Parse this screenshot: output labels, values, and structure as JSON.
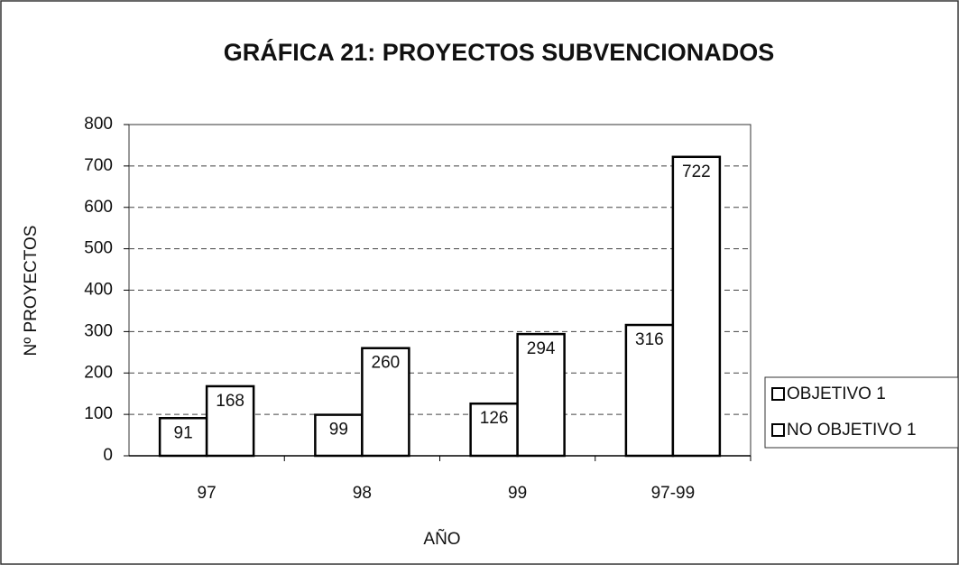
{
  "chart_data": {
    "type": "bar",
    "title": "GRÁFICA 21: PROYECTOS SUBVENCIONADOS",
    "x_label": "AÑO",
    "y_label": "Nº PROYECTOS",
    "categories": [
      "97",
      "98",
      "99",
      "97-99"
    ],
    "series": [
      {
        "name": "OBJETIVO 1",
        "color": "#ffffff",
        "values": [
          91,
          99,
          126,
          316
        ]
      },
      {
        "name": "NO OBJETIVO 1",
        "color": "#ffffff",
        "values": [
          168,
          260,
          294,
          722
        ]
      }
    ],
    "ylim": [
      0,
      800
    ],
    "yticks": [
      0,
      100,
      200,
      300,
      400,
      500,
      600,
      700,
      800
    ],
    "grid": true,
    "legend": "right"
  }
}
